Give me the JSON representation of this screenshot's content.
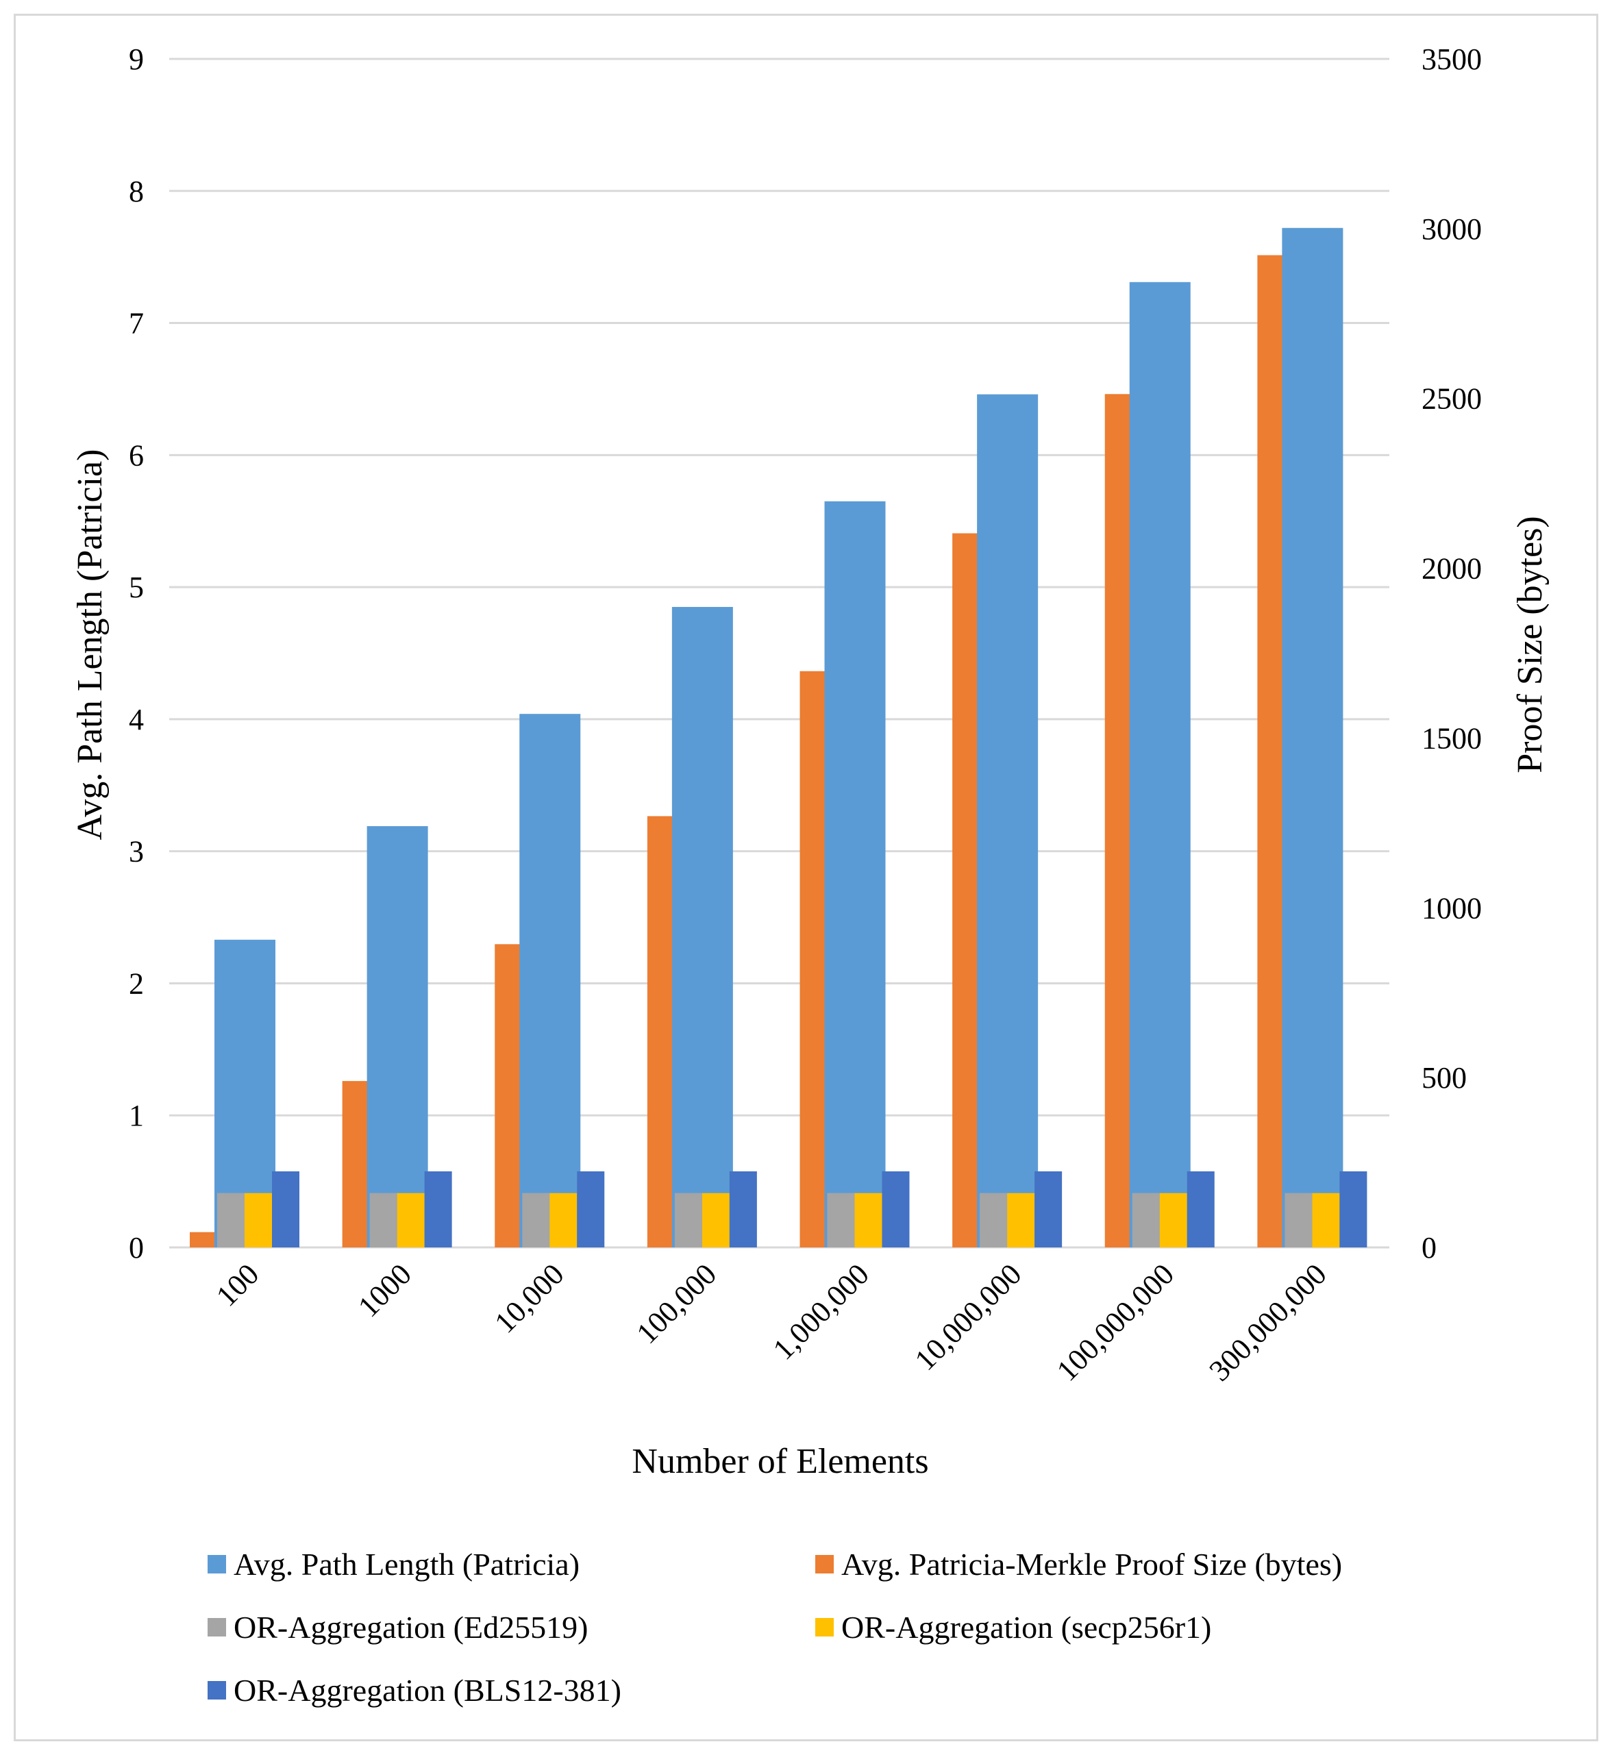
{
  "chart_data": {
    "type": "bar",
    "title": "",
    "xlabel": "Number of Elements",
    "ylabel_left": "Avg. Path Length (Patricia)",
    "ylabel_right": "Proof Size (bytes)",
    "categories": [
      "100",
      "1000",
      "10,000",
      "100,000",
      "1,000,000",
      "10,000,000",
      "100,000,000",
      "300,000,000"
    ],
    "ylim_left": [
      0,
      9
    ],
    "ylim_right": [
      0,
      3500
    ],
    "yticks_left": [
      "0",
      "1",
      "2",
      "3",
      "4",
      "5",
      "6",
      "7",
      "8",
      "9"
    ],
    "yticks_right": [
      "0",
      "500",
      "1000",
      "1500",
      "2000",
      "2500",
      "3000",
      "3500"
    ],
    "grid": true,
    "legend_position": "bottom",
    "series": [
      {
        "name": "Avg. Path Length (Patricia)",
        "axis": "left",
        "color": "#5b9bd5",
        "values": [
          2.33,
          3.19,
          4.04,
          4.85,
          5.65,
          6.46,
          7.31,
          7.72
        ]
      },
      {
        "name": "Avg. Patricia-Merkle Proof Size (bytes)",
        "axis": "right",
        "color": "#ed7d31",
        "values": [
          45,
          490,
          893,
          1270,
          1697,
          2103,
          2513,
          2922
        ]
      },
      {
        "name": "OR-Aggregation (Ed25519)",
        "axis": "right",
        "color": "#a5a5a5",
        "values": [
          160,
          160,
          160,
          160,
          160,
          160,
          160,
          160
        ]
      },
      {
        "name": "OR-Aggregation (secp256r1)",
        "axis": "right",
        "color": "#ffc000",
        "values": [
          160,
          160,
          160,
          160,
          160,
          160,
          160,
          160
        ]
      },
      {
        "name": "OR-Aggregation (BLS12-381)",
        "axis": "right",
        "color": "#4472c4",
        "values": [
          224,
          224,
          224,
          224,
          224,
          224,
          224,
          224
        ]
      }
    ]
  }
}
